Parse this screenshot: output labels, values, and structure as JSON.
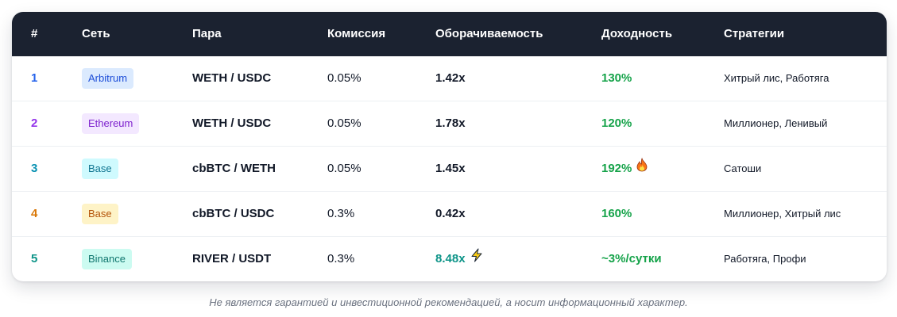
{
  "table": {
    "headers": {
      "rank": "#",
      "network": "Сеть",
      "pair": "Пара",
      "fee": "Комиссия",
      "turnover": "Оборачиваемость",
      "yield": "Доходность",
      "strategies": "Стратегии"
    },
    "rows": [
      {
        "rank": "1",
        "rank_color": "#2563eb",
        "network": "Arbitrum",
        "badge_bg": "#dbeafe",
        "badge_fg": "#1d4ed8",
        "pair": "WETH / USDC",
        "fee": "0.05%",
        "turnover": "1.42x",
        "yield": "130%",
        "strategies": "Хитрый лис, Работяга"
      },
      {
        "rank": "2",
        "rank_color": "#9333ea",
        "network": "Ethereum",
        "badge_bg": "#f3e8ff",
        "badge_fg": "#7e22ce",
        "pair": "WETH / USDC",
        "fee": "0.05%",
        "turnover": "1.78x",
        "yield": "120%",
        "strategies": "Миллионер, Ленивый"
      },
      {
        "rank": "3",
        "rank_color": "#0891b2",
        "network": "Base",
        "badge_bg": "#cffafe",
        "badge_fg": "#0e7490",
        "pair": "cbBTC / WETH",
        "fee": "0.05%",
        "turnover": "1.45x",
        "yield": "192%",
        "yield_icon": "fire-icon",
        "strategies": "Сатоши"
      },
      {
        "rank": "4",
        "rank_color": "#d97706",
        "network": "Base",
        "badge_bg": "#fef3c7",
        "badge_fg": "#b45309",
        "pair": "cbBTC / USDC",
        "fee": "0.3%",
        "turnover": "0.42x",
        "yield": "160%",
        "strategies": "Миллионер, Хитрый лис"
      },
      {
        "rank": "5",
        "rank_color": "#0d9488",
        "network": "Binance",
        "badge_bg": "#ccfbf1",
        "badge_fg": "#0f766e",
        "pair": "RIVER / USDT",
        "fee": "0.3%",
        "turnover": "8.48x",
        "turnover_icon": "lightning-icon",
        "yield": "~3%/сутки",
        "strategies": "Работяга, Профи"
      }
    ]
  },
  "disclaimer": "Не является гарантией и инвестиционной рекомендацией, а носит информационный характер.",
  "colors": {
    "header_bg": "#1b2230",
    "yield_green": "#16a34a",
    "highlight_teal": "#0d9488"
  }
}
